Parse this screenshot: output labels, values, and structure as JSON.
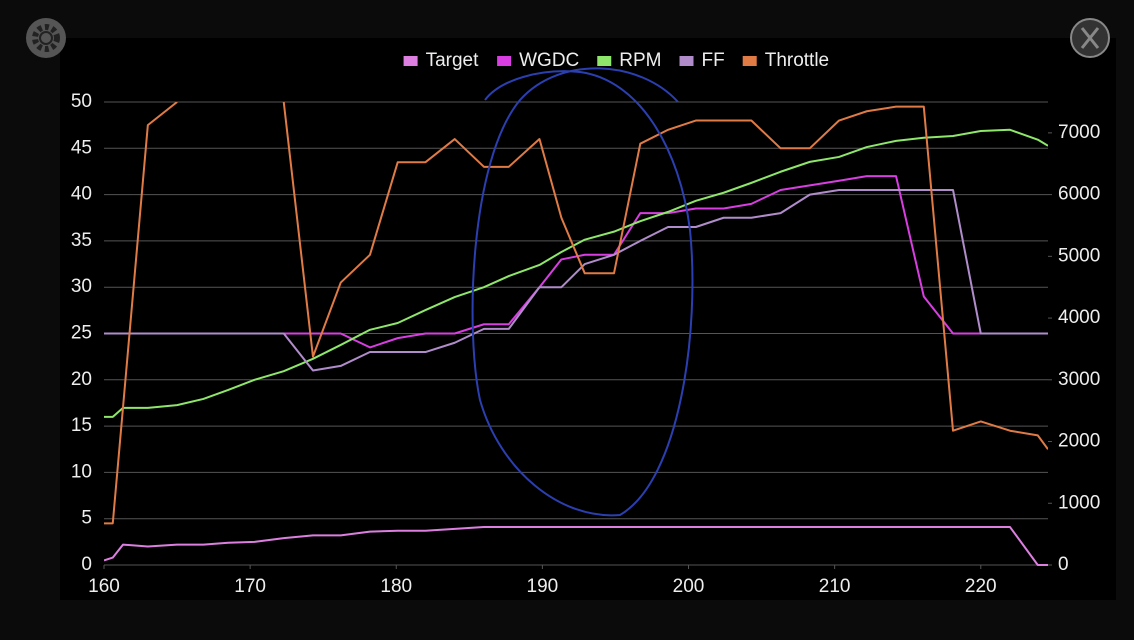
{
  "chart_data": {
    "type": "line",
    "x": [
      160,
      160.6,
      161.3,
      163,
      165,
      166.8,
      168.5,
      170.3,
      172.3,
      174.3,
      176.2,
      178.2,
      180.1,
      182,
      184,
      186,
      187.7,
      189.8,
      191.3,
      192.9,
      194.9,
      196.7,
      198.6,
      200.5,
      202.4,
      204.3,
      206.3,
      208.3,
      210.3,
      212.2,
      214.2,
      216.1,
      218.1,
      220,
      222,
      223.9,
      224.6
    ],
    "series": [
      {
        "name": "Target",
        "color": "#dc7fe0",
        "values": [
          0.5,
          0.8,
          2.2,
          2,
          2.2,
          2.2,
          2.4,
          2.5,
          2.9,
          3.2,
          3.2,
          3.6,
          3.7,
          3.7,
          3.9,
          4.1,
          4.1,
          4.1,
          4.1,
          4.1,
          4.1,
          4.1,
          4.1,
          4.1,
          4.1,
          4.1,
          4.1,
          4.1,
          4.1,
          4.1,
          4.1,
          4.1,
          4.1,
          4.1,
          4.1,
          0,
          0
        ]
      },
      {
        "name": "WGDC",
        "color": "#d83ee2",
        "values": [
          25,
          25,
          25,
          25,
          25,
          25,
          25,
          25,
          25,
          25,
          25,
          23.5,
          24.5,
          25,
          25,
          26,
          26,
          30,
          33,
          33.5,
          33.5,
          38,
          38,
          38.5,
          38.5,
          39,
          40.5,
          41,
          41.5,
          42,
          42,
          29,
          25,
          25,
          25,
          25,
          25
        ]
      },
      {
        "name": "RPM",
        "color": "#8ee66a",
        "axis": "y2",
        "values": [
          2400,
          2400,
          2545,
          2545,
          2590,
          2690,
          2835,
          3000,
          3140,
          3340,
          3565,
          3810,
          3920,
          4130,
          4340,
          4500,
          4680,
          4860,
          5070,
          5270,
          5400,
          5570,
          5720,
          5900,
          6030,
          6190,
          6370,
          6530,
          6610,
          6770,
          6870,
          6920,
          6950,
          7030,
          7050,
          6890,
          6790
        ]
      },
      {
        "name": "FF",
        "color": "#b08ccb",
        "values": [
          25,
          25,
          25,
          25,
          25,
          25,
          25,
          25,
          25,
          21,
          21.5,
          23,
          23,
          23,
          24,
          25.5,
          25.5,
          30,
          30,
          32.5,
          33.5,
          35,
          36.5,
          36.5,
          37.5,
          37.5,
          38,
          40,
          40.5,
          40.5,
          40.5,
          40.5,
          40.5,
          25,
          25,
          25,
          25
        ]
      },
      {
        "name": "Throttle",
        "color": "#e07b45",
        "values": [
          4.5,
          4.5,
          17,
          47.5,
          50,
          null,
          null,
          null,
          50,
          22.5,
          30.5,
          33.5,
          43.5,
          43.5,
          46,
          43,
          43,
          46,
          37.5,
          31.5,
          31.5,
          45.5,
          47,
          48,
          48,
          48,
          45,
          45,
          48,
          49,
          49.5,
          49.5,
          14.5,
          15.5,
          14.5,
          14,
          12.5
        ]
      }
    ],
    "xlim": [
      160,
      224.6
    ],
    "xticks": [
      160,
      170,
      180,
      190,
      200,
      210,
      220
    ],
    "ylim": [
      0,
      50
    ],
    "yticks": [
      0,
      5,
      10,
      15,
      20,
      25,
      30,
      35,
      40,
      45,
      50
    ],
    "y2lim": [
      0,
      7500
    ],
    "y2ticks": [
      0,
      1000,
      2000,
      3000,
      4000,
      5000,
      6000,
      7000
    ],
    "grid": true,
    "legend": "top"
  }
}
